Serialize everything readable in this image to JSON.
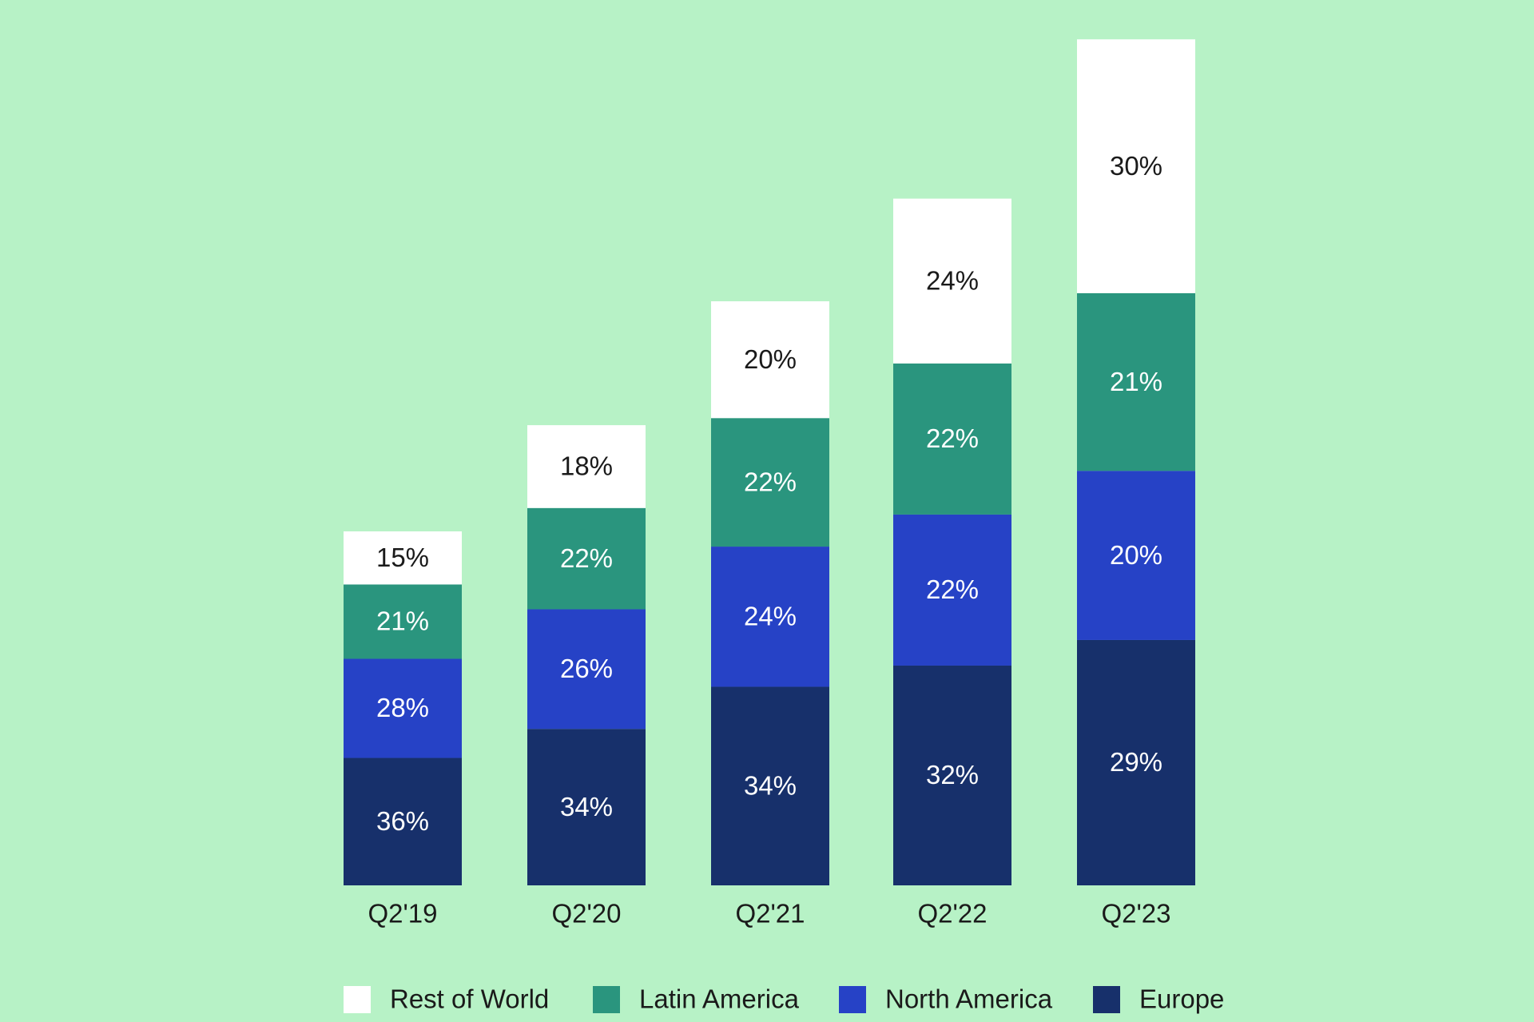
{
  "chart_data": {
    "type": "bar",
    "stacked": true,
    "title": "",
    "xlabel": "",
    "ylabel": "",
    "categories": [
      "Q2'19",
      "Q2'20",
      "Q2'21",
      "Q2'22",
      "Q2'23"
    ],
    "relative_total": [
      1.0,
      1.3,
      1.65,
      1.94,
      2.39
    ],
    "series": [
      {
        "name": "Europe",
        "color": "#17306b",
        "label_color": "#ffffff",
        "values": [
          36,
          34,
          34,
          32,
          29
        ],
        "labels": [
          "36%",
          "34%",
          "34%",
          "32%",
          "29%"
        ]
      },
      {
        "name": "North America",
        "color": "#2642c6",
        "label_color": "#ffffff",
        "values": [
          28,
          26,
          24,
          22,
          20
        ],
        "labels": [
          "28%",
          "26%",
          "24%",
          "22%",
          "20%"
        ]
      },
      {
        "name": "Latin America",
        "color": "#2a957e",
        "label_color": "#ffffff",
        "values": [
          21,
          22,
          22,
          22,
          21
        ],
        "labels": [
          "21%",
          "22%",
          "22%",
          "22%",
          "21%"
        ]
      },
      {
        "name": "Rest of World",
        "color": "#ffffff",
        "label_color": "#1a1a1a",
        "values": [
          15,
          18,
          20,
          24,
          30
        ],
        "labels": [
          "15%",
          "18%",
          "20%",
          "24%",
          "30%"
        ]
      }
    ],
    "legend": {
      "position": "bottom",
      "order": [
        "Rest of World",
        "Latin America",
        "North America",
        "Europe"
      ]
    }
  }
}
